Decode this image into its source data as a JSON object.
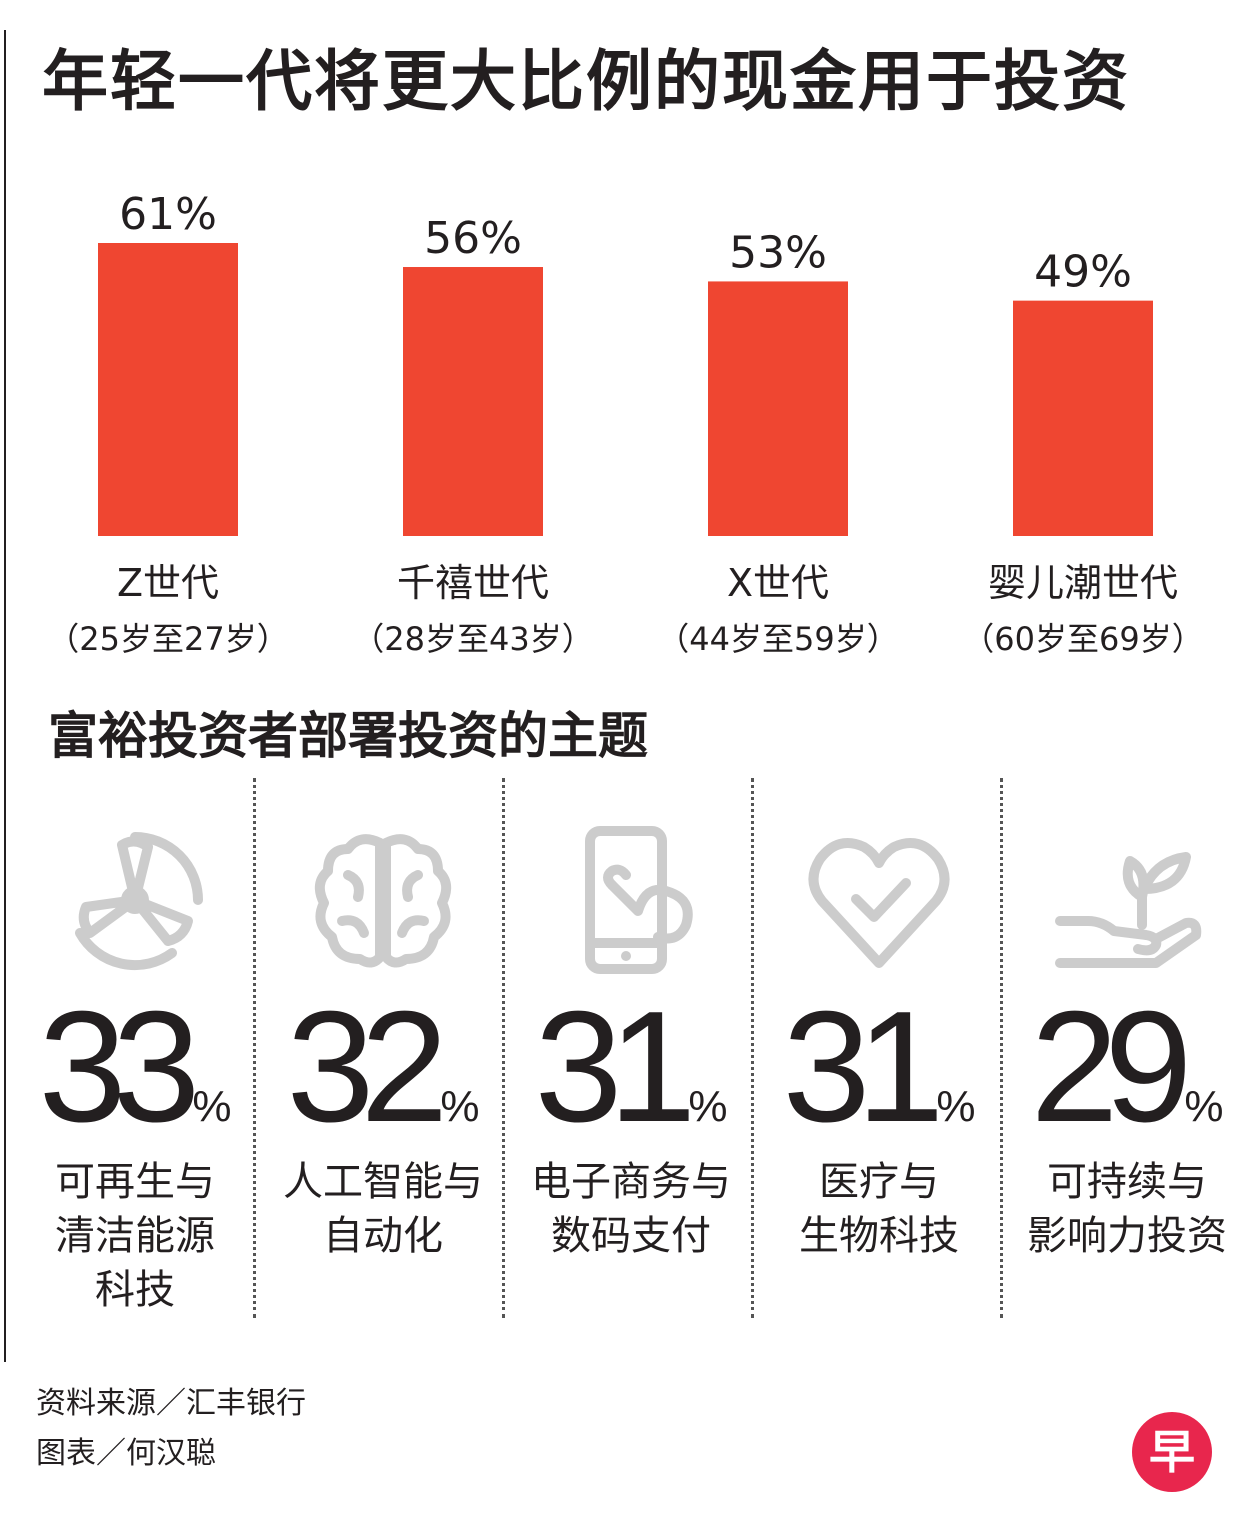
{
  "title": "年轻一代将更大比例的现金用于投资",
  "chart_data": {
    "type": "bar",
    "categories": [
      "Z世代",
      "千禧世代",
      "X世代",
      "婴儿潮世代"
    ],
    "age_ranges": [
      "（25岁至27岁）",
      "（28岁至43岁）",
      "（44岁至59岁）",
      "（60岁至69岁）"
    ],
    "values": [
      61,
      56,
      53,
      49
    ],
    "value_labels": [
      "61%",
      "56%",
      "53%",
      "49%"
    ],
    "ylim": [
      0,
      61
    ],
    "bar_color": "#ef4631"
  },
  "subtitle": "富裕投资者部署投资的主题",
  "themes": [
    {
      "icon": "wind-turbine-icon",
      "value": "33",
      "unit": "%",
      "label": "可再生与\n清洁能源\n科技"
    },
    {
      "icon": "brain-icon",
      "value": "32",
      "unit": "%",
      "label": "人工智能与\n自动化"
    },
    {
      "icon": "phone-tap-icon",
      "value": "31",
      "unit": "%",
      "label": "电子商务与\n数码支付"
    },
    {
      "icon": "heart-check-icon",
      "value": "31",
      "unit": "%",
      "label": "医疗与\n生物科技"
    },
    {
      "icon": "hand-plant-icon",
      "value": "29",
      "unit": "%",
      "label": "可持续与\n影响力投资"
    }
  ],
  "footer": {
    "source": "资料来源／汇丰银行",
    "credit": "图表／何汉聪"
  },
  "logo": {
    "glyph": "早",
    "color": "#e8264d"
  },
  "icon_color": "#cccccc"
}
